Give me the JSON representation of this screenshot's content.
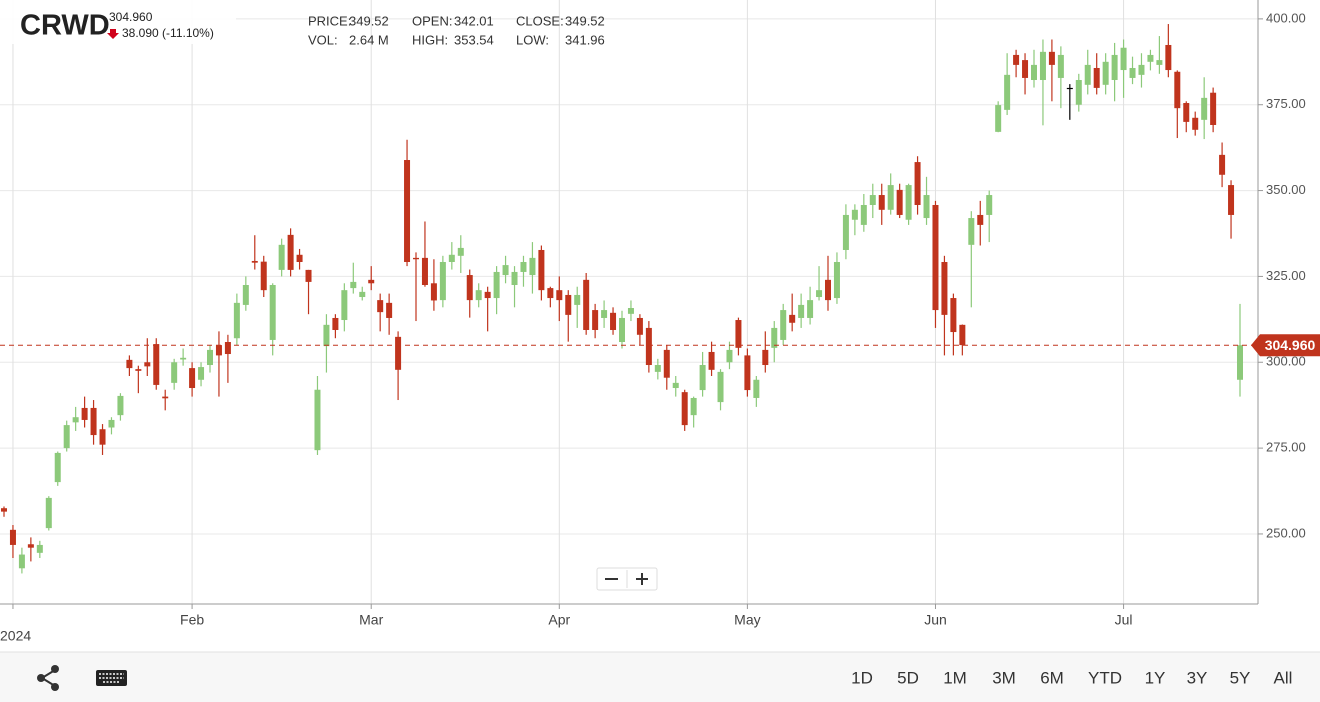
{
  "header": {
    "ticker": "CRWD",
    "price": {
      "value": 304.96,
      "label": "304.960"
    },
    "change": "38.090 (-11.10%)",
    "stats": [
      {
        "label": "PRICE:",
        "value": 349.52
      },
      {
        "label": "OPEN:",
        "value": 342.01
      },
      {
        "label": "CLOSE:",
        "value": 349.52
      },
      {
        "label": "VOL:",
        "value": "2.64 M"
      },
      {
        "label": "HIGH:",
        "value": 353.54
      },
      {
        "label": "LOW:",
        "value": 341.96
      }
    ]
  },
  "chart_data": {
    "type": "candlestick",
    "up_color": "#8cc97a",
    "down_color": "#c0341d",
    "flat_color": "#000000",
    "last_price_color": "#c0341d",
    "categories": [
      null,
      "2024",
      null,
      null,
      null,
      null,
      null,
      null,
      null,
      null,
      null,
      null,
      null,
      null,
      null,
      null,
      null,
      null,
      null,
      null,
      null,
      "Feb",
      null,
      null,
      null,
      null,
      null,
      null,
      null,
      null,
      null,
      null,
      null,
      null,
      null,
      null,
      null,
      null,
      null,
      null,
      null,
      "Mar",
      null,
      null,
      null,
      null,
      null,
      null,
      null,
      null,
      null,
      null,
      null,
      null,
      null,
      null,
      null,
      null,
      null,
      null,
      null,
      null,
      "Apr",
      null,
      null,
      null,
      null,
      null,
      null,
      null,
      null,
      null,
      null,
      null,
      null,
      null,
      null,
      null,
      null,
      null,
      null,
      null,
      null,
      "May",
      null,
      null,
      null,
      null,
      null,
      null,
      null,
      null,
      null,
      null,
      null,
      null,
      null,
      null,
      null,
      null,
      null,
      null,
      null,
      null,
      "Jun",
      null,
      null,
      null,
      null,
      null,
      null,
      null,
      null,
      null,
      null,
      null,
      null,
      null,
      null,
      null,
      null,
      null,
      null,
      null,
      null,
      "Jul",
      null,
      null,
      null,
      null,
      null,
      null,
      null,
      null,
      null,
      null,
      null,
      null,
      null
    ],
    "open": [
      257.5,
      251.2,
      240,
      247,
      244.5,
      251.7,
      265.1,
      275,
      282.5,
      286.7,
      286.7,
      280.5,
      281,
      284.6,
      300.7,
      298,
      300,
      305.3,
      290,
      294,
      300.8,
      298.3,
      294.9,
      299.2,
      305,
      305.9,
      307,
      316.7,
      329.5,
      329.3,
      306.5,
      326.9,
      337.1,
      331.3,
      326.9,
      274.4,
      304.7,
      312.9,
      312.3,
      321.6,
      319,
      324,
      318.1,
      317.3,
      307.4,
      358.9,
      330.4,
      330.4,
      323,
      318.1,
      329.2,
      331,
      325.4,
      318.1,
      320.5,
      318.7,
      325.4,
      322.5,
      326.3,
      325.4,
      332.7,
      321.6,
      321,
      319.6,
      316.7,
      324,
      315.2,
      312.9,
      314.4,
      305.9,
      314.1,
      312.9,
      310,
      297.2,
      303.6,
      292.5,
      291.3,
      284.6,
      291.9,
      303,
      288.4,
      300,
      312.3,
      302,
      289.6,
      303.6,
      304.2,
      306.5,
      313.8,
      312.9,
      312.9,
      319,
      324,
      318.7,
      332.7,
      341.5,
      340,
      345.8,
      348.7,
      344.4,
      350.2,
      341.5,
      358.3,
      342,
      345.8,
      329.2,
      318.7,
      310.9,
      334.2,
      342.9,
      342.9,
      367.1,
      373.5,
      389.5,
      388,
      382.2,
      382.2,
      390.4,
      382.8,
      379.9,
      375,
      380.8,
      385.7,
      380.8,
      382.2,
      385.1,
      382.8,
      383.7,
      387.5,
      386.6,
      392.4,
      384.6,
      375.5,
      371.2,
      370.6,
      378.5,
      360.4,
      351.6,
      294.9
    ],
    "high": [
      258,
      252.6,
      246,
      249,
      248,
      261,
      274,
      283,
      287,
      290,
      289,
      282,
      284,
      291,
      302,
      299,
      307,
      307,
      292,
      301,
      304,
      300,
      300,
      305,
      309,
      308,
      320,
      325,
      337,
      331,
      323,
      336,
      339,
      333,
      326.9,
      296,
      314,
      314,
      323,
      329,
      322,
      328,
      320,
      320,
      309,
      364.8,
      332,
      341,
      330,
      331,
      335,
      337,
      327,
      323,
      322,
      328,
      331,
      328,
      331,
      335,
      334,
      322,
      325,
      321,
      322,
      326,
      317,
      318,
      316,
      315,
      318,
      314,
      312,
      301,
      305,
      296,
      292,
      290,
      303,
      306,
      298,
      306,
      313,
      304,
      296,
      309,
      312,
      317,
      320,
      320,
      322,
      328,
      331,
      332,
      346,
      346,
      349,
      352,
      352,
      355,
      352,
      352,
      360,
      354,
      347,
      331,
      320,
      311,
      344,
      347,
      350,
      376,
      390,
      391,
      390,
      391,
      394,
      394,
      392,
      381,
      384,
      391,
      390,
      390,
      393,
      394,
      389,
      390,
      391,
      395,
      398.5,
      385,
      376,
      373,
      383,
      380,
      364,
      353,
      317
    ],
    "low": [
      255,
      243,
      238.5,
      242,
      243,
      251,
      264,
      274,
      280,
      281,
      276,
      273,
      279,
      283,
      296,
      291,
      296,
      292,
      286,
      292,
      299,
      290,
      293,
      297,
      290,
      294,
      305,
      315,
      327,
      319,
      302,
      325,
      325,
      327,
      314,
      273,
      297,
      307,
      309,
      320,
      318,
      321,
      309,
      308,
      289,
      328,
      312,
      322,
      315,
      316,
      327,
      326,
      313,
      316,
      309,
      314,
      323,
      316,
      322,
      320,
      318,
      316,
      312,
      306,
      310,
      308,
      307,
      310,
      308,
      304,
      312,
      305,
      297,
      295,
      292,
      290,
      280,
      281,
      290,
      296,
      286,
      298,
      302,
      290,
      287,
      297,
      300,
      305,
      309,
      310,
      311,
      318,
      315,
      317,
      330,
      337,
      338,
      342,
      340,
      343,
      342,
      340,
      343,
      340,
      310,
      302,
      302,
      302,
      316,
      334,
      335,
      367,
      372,
      383,
      378,
      380,
      369,
      376,
      374,
      370.6,
      373,
      378,
      378,
      378,
      376,
      377,
      381,
      380,
      385,
      384,
      383,
      365.3,
      367,
      366,
      365,
      367,
      351,
      336,
      290
    ],
    "close": [
      256.5,
      246.8,
      244,
      246,
      246.8,
      260.5,
      273.6,
      281.7,
      284,
      283.2,
      278.8,
      276,
      283.2,
      290.2,
      298.3,
      297.5,
      298.8,
      293.4,
      289.5,
      300,
      301.3,
      292.5,
      298.6,
      303.6,
      302,
      302.4,
      317.3,
      322.5,
      329,
      321,
      322.5,
      334.2,
      326.9,
      329.2,
      323.4,
      292,
      310.9,
      309.4,
      321,
      323.4,
      320.5,
      323,
      314.6,
      312.9,
      297.8,
      329.2,
      330,
      322.5,
      318,
      329.2,
      331.3,
      333.3,
      318.1,
      321,
      318.7,
      326.3,
      328.3,
      326.3,
      329.2,
      330.4,
      321,
      318.7,
      318.1,
      313.8,
      319.6,
      309.4,
      309.4,
      315.2,
      309.4,
      312.9,
      315.8,
      308,
      299.2,
      299.2,
      295.5,
      294,
      281.7,
      289.6,
      299.2,
      297.8,
      297.2,
      303.6,
      304.2,
      291.9,
      294.9,
      299.2,
      310,
      315.2,
      311.5,
      316.7,
      318.1,
      321,
      318.1,
      329.2,
      342.9,
      344.4,
      345.8,
      348.7,
      344.4,
      351.6,
      342.9,
      351.6,
      345.8,
      348.7,
      315.2,
      313.8,
      308.8,
      305,
      342,
      340,
      348.7,
      374.9,
      383.7,
      386.6,
      382.8,
      386.6,
      390.4,
      386.6,
      389.5,
      379.9,
      382.2,
      386.6,
      379.9,
      387.5,
      389.5,
      391.6,
      385.7,
      386.6,
      389.5,
      388,
      385.1,
      374,
      370,
      367.7,
      377,
      369.1,
      354.6,
      342.9,
      304.96
    ],
    "ylim": [
      229.6,
      405.5
    ],
    "yticks": [
      {
        "value": 250,
        "label": "250.00"
      },
      {
        "value": 275,
        "label": "275.00"
      },
      {
        "value": 300,
        "label": "300.00"
      },
      {
        "value": 325,
        "label": "325.00"
      },
      {
        "value": 350,
        "label": "350.00"
      },
      {
        "value": 375,
        "label": "375.00"
      },
      {
        "value": 400,
        "label": "400.00"
      }
    ],
    "grid": true
  },
  "toolbar": {
    "ranges": [
      "1D",
      "5D",
      "1M",
      "3M",
      "6M",
      "YTD",
      "1Y",
      "3Y",
      "5Y",
      "All"
    ]
  }
}
